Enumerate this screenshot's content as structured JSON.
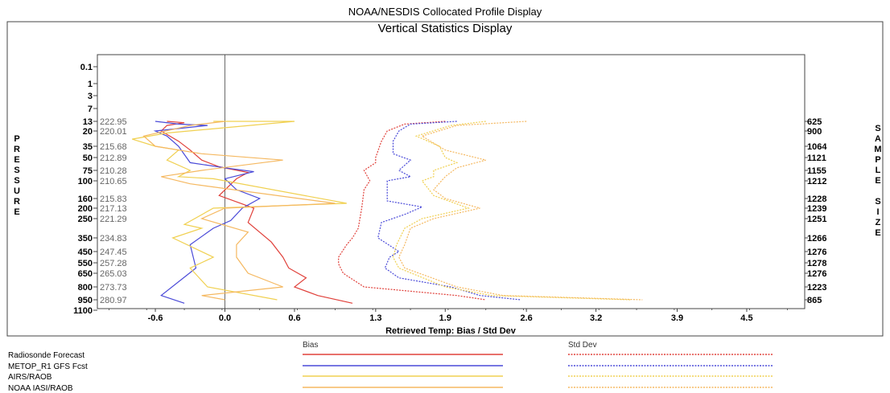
{
  "chart_data": {
    "type": "line",
    "title": "Vertical Statistics Display",
    "header": "NOAA/NESDIS Collocated Profile Display",
    "xlabel": "Retrieved Temp: Bias / Std Dev",
    "ylabel_left": "PRESSURE",
    "ylabel_right": "SAMPLE SIZE",
    "x_ticks": [
      "-0.6",
      "0.0",
      "0.6",
      "1.3",
      "1.9",
      "2.6",
      "3.2",
      "3.9",
      "4.5"
    ],
    "x_tick_values": [
      -0.6,
      0.0,
      0.6,
      1.3,
      1.9,
      2.6,
      3.2,
      3.9,
      4.5
    ],
    "xlim": [
      -1.1,
      5.0
    ],
    "pressure_levels": [
      "0.1",
      "1",
      "3",
      "7",
      "13",
      "20",
      "35",
      "50",
      "75",
      "100",
      "160",
      "200",
      "250",
      "350",
      "450",
      "550",
      "650",
      "800",
      "950",
      "1100"
    ],
    "mean_temps": [
      "",
      "",
      "",
      "",
      "222.95",
      "220.01",
      "215.68",
      "212.89",
      "210.28",
      "210.65",
      "215.83",
      "217.13",
      "221.29",
      "234.83",
      "247.45",
      "257.28",
      "265.03",
      "273.73",
      "280.97",
      ""
    ],
    "sample_sizes": [
      "",
      "",
      "",
      "",
      "625",
      "900",
      "1064",
      "1121",
      "1155",
      "1212",
      "1228",
      "1239",
      "1251",
      "1266",
      "1276",
      "1278",
      "1276",
      "1223",
      "865",
      ""
    ],
    "legend_headers": {
      "bias": "Bias",
      "std": "Std Dev"
    },
    "series": [
      {
        "name": "Radiosonde Forecast",
        "color": "#e0403a",
        "bias": [
          [
            -0.5,
            13
          ],
          [
            -0.35,
            14
          ],
          [
            -0.5,
            16
          ],
          [
            -0.55,
            20
          ],
          [
            -0.4,
            30
          ],
          [
            -0.3,
            40
          ],
          [
            -0.2,
            55
          ],
          [
            -0.05,
            68
          ],
          [
            0.2,
            80
          ],
          [
            0.1,
            95
          ],
          [
            -0.05,
            150
          ],
          [
            0.25,
            200
          ],
          [
            0.2,
            270
          ],
          [
            0.4,
            380
          ],
          [
            0.5,
            500
          ],
          [
            0.55,
            600
          ],
          [
            0.7,
            700
          ],
          [
            0.6,
            800
          ],
          [
            0.8,
            900
          ],
          [
            1.1,
            1000
          ]
        ],
        "std": [
          [
            1.9,
            13
          ],
          [
            1.55,
            15
          ],
          [
            1.4,
            20
          ],
          [
            1.35,
            30
          ],
          [
            1.3,
            50
          ],
          [
            1.3,
            60
          ],
          [
            1.2,
            75
          ],
          [
            1.25,
            100
          ],
          [
            1.2,
            130
          ],
          [
            1.18,
            200
          ],
          [
            1.15,
            300
          ],
          [
            1.1,
            350
          ],
          [
            1.05,
            400
          ],
          [
            0.98,
            500
          ],
          [
            0.98,
            560
          ],
          [
            1.02,
            650
          ],
          [
            1.2,
            800
          ],
          [
            2.0,
            900
          ],
          [
            2.25,
            950
          ]
        ]
      },
      {
        "name": "METOP_R1 GFS Fcst",
        "color": "#4a4ad8",
        "bias": [
          [
            -0.6,
            13
          ],
          [
            -0.4,
            15
          ],
          [
            -0.15,
            16
          ],
          [
            -0.6,
            20
          ],
          [
            -0.5,
            25
          ],
          [
            -0.4,
            35
          ],
          [
            -0.3,
            60
          ],
          [
            0.0,
            70
          ],
          [
            0.25,
            78
          ],
          [
            0.0,
            95
          ],
          [
            0.1,
            130
          ],
          [
            0.3,
            160
          ],
          [
            0.15,
            200
          ],
          [
            0.05,
            260
          ],
          [
            -0.1,
            300
          ],
          [
            -0.3,
            400
          ],
          [
            -0.25,
            600
          ],
          [
            -0.55,
            900
          ],
          [
            -0.35,
            1000
          ]
        ],
        "std": [
          [
            2.0,
            13
          ],
          [
            1.6,
            15
          ],
          [
            1.5,
            20
          ],
          [
            1.45,
            30
          ],
          [
            1.45,
            45
          ],
          [
            1.6,
            55
          ],
          [
            1.5,
            75
          ],
          [
            1.6,
            90
          ],
          [
            1.4,
            100
          ],
          [
            1.4,
            170
          ],
          [
            1.7,
            195
          ],
          [
            1.55,
            230
          ],
          [
            1.35,
            270
          ],
          [
            1.32,
            350
          ],
          [
            1.5,
            450
          ],
          [
            1.42,
            500
          ],
          [
            1.38,
            600
          ],
          [
            1.5,
            700
          ],
          [
            1.95,
            800
          ],
          [
            2.2,
            900
          ],
          [
            2.55,
            950
          ]
        ]
      },
      {
        "name": "AIRS/RAOB",
        "color": "#f0d050",
        "bias": [
          [
            -0.1,
            13
          ],
          [
            0.6,
            13
          ],
          [
            -0.5,
            22
          ],
          [
            -0.8,
            28
          ],
          [
            -0.6,
            35
          ],
          [
            -0.4,
            40
          ],
          [
            -0.5,
            55
          ],
          [
            -0.3,
            75
          ],
          [
            -0.4,
            90
          ],
          [
            -0.1,
            95
          ],
          [
            1.05,
            180
          ],
          [
            -0.1,
            200
          ],
          [
            -0.35,
            280
          ],
          [
            -0.2,
            300
          ],
          [
            -0.45,
            350
          ],
          [
            -0.1,
            500
          ],
          [
            -0.3,
            600
          ],
          [
            -0.15,
            800
          ],
          [
            0.45,
            950
          ]
        ],
        "std": [
          [
            2.25,
            13
          ],
          [
            1.95,
            16
          ],
          [
            1.65,
            25
          ],
          [
            1.85,
            35
          ],
          [
            1.9,
            50
          ],
          [
            2.0,
            60
          ],
          [
            1.8,
            75
          ],
          [
            1.8,
            90
          ],
          [
            1.7,
            100
          ],
          [
            1.8,
            150
          ],
          [
            2.1,
            200
          ],
          [
            1.7,
            250
          ],
          [
            1.55,
            300
          ],
          [
            1.48,
            400
          ],
          [
            1.45,
            500
          ],
          [
            1.5,
            600
          ],
          [
            1.9,
            800
          ],
          [
            2.3,
            900
          ],
          [
            3.5,
            950
          ]
        ]
      },
      {
        "name": "NOAA IASI/RAOB",
        "color": "#f5b860",
        "bias": [
          [
            0.0,
            13
          ],
          [
            -0.3,
            16
          ],
          [
            -0.7,
            25
          ],
          [
            -0.6,
            35
          ],
          [
            -0.2,
            45
          ],
          [
            0.5,
            55
          ],
          [
            -0.2,
            75
          ],
          [
            -0.55,
            90
          ],
          [
            -0.3,
            110
          ],
          [
            0.95,
            180
          ],
          [
            0.0,
            200
          ],
          [
            -0.2,
            250
          ],
          [
            0.2,
            320
          ],
          [
            0.1,
            400
          ],
          [
            0.1,
            500
          ],
          [
            0.2,
            650
          ],
          [
            0.5,
            800
          ],
          [
            -0.2,
            900
          ],
          [
            0.0,
            950
          ]
        ],
        "std": [
          [
            2.6,
            13
          ],
          [
            2.0,
            16
          ],
          [
            1.7,
            25
          ],
          [
            1.9,
            40
          ],
          [
            2.25,
            55
          ],
          [
            2.0,
            70
          ],
          [
            1.9,
            90
          ],
          [
            1.8,
            130
          ],
          [
            1.9,
            160
          ],
          [
            2.2,
            200
          ],
          [
            1.8,
            250
          ],
          [
            1.6,
            300
          ],
          [
            1.55,
            400
          ],
          [
            1.5,
            500
          ],
          [
            1.55,
            600
          ],
          [
            2.0,
            800
          ],
          [
            2.4,
            900
          ],
          [
            3.6,
            950
          ]
        ]
      }
    ]
  }
}
